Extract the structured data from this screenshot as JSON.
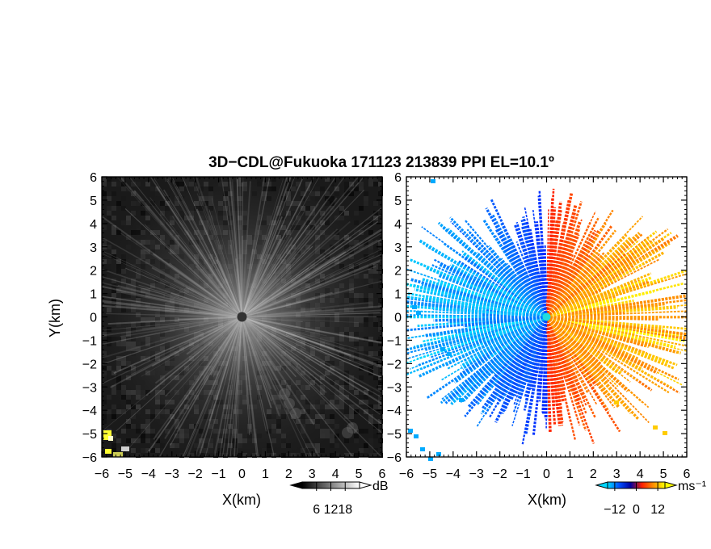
{
  "title": "3D−CDL@Fukuoka 171123 213839 PPI EL=10.1º",
  "chart_data": [
    {
      "type": "heatmap",
      "name": "signal-to-noise",
      "xlabel": "X(km)",
      "ylabel": "Y(km)",
      "xlim": [
        -6,
        6
      ],
      "ylim": [
        -6,
        6
      ],
      "x_ticks": [
        "−6",
        "−5",
        "−4",
        "−3",
        "−2",
        "−1",
        "0",
        "1",
        "2",
        "3",
        "4",
        "5",
        "6"
      ],
      "y_ticks": [
        "−6",
        "−5",
        "−4",
        "−3",
        "−2",
        "−1",
        "0",
        "1",
        "2",
        "3",
        "4",
        "5",
        "6"
      ],
      "colorbar": {
        "unit": "dB",
        "ticks": [
          "6",
          "12",
          "18"
        ],
        "range": [
          0,
          24
        ],
        "colors": [
          "#000000",
          "#ffffff"
        ]
      },
      "radar_center": [
        0,
        0
      ]
    },
    {
      "type": "heatmap",
      "name": "radial-velocity",
      "xlabel": "X(km)",
      "ylabel": "",
      "xlim": [
        -6,
        6
      ],
      "ylim": [
        -6,
        6
      ],
      "x_ticks": [
        "−6",
        "−5",
        "−4",
        "−3",
        "−2",
        "−1",
        "0",
        "1",
        "2",
        "3",
        "4",
        "5",
        "6"
      ],
      "y_ticks": [
        "−6",
        "−5",
        "−4",
        "−3",
        "−2",
        "−1",
        "0",
        "1",
        "2",
        "3",
        "4",
        "5",
        "6"
      ],
      "colorbar": {
        "unit": "ms⁻¹",
        "ticks": [
          "−12",
          "0",
          "12"
        ],
        "range": [
          -16,
          16
        ],
        "colors": [
          "#00d8ff",
          "#0050ff",
          "#0000a0",
          "#ff2000",
          "#ff9000",
          "#ffff00"
        ]
      },
      "flow_direction_deg": 90,
      "radar_center": [
        0,
        0
      ]
    }
  ]
}
